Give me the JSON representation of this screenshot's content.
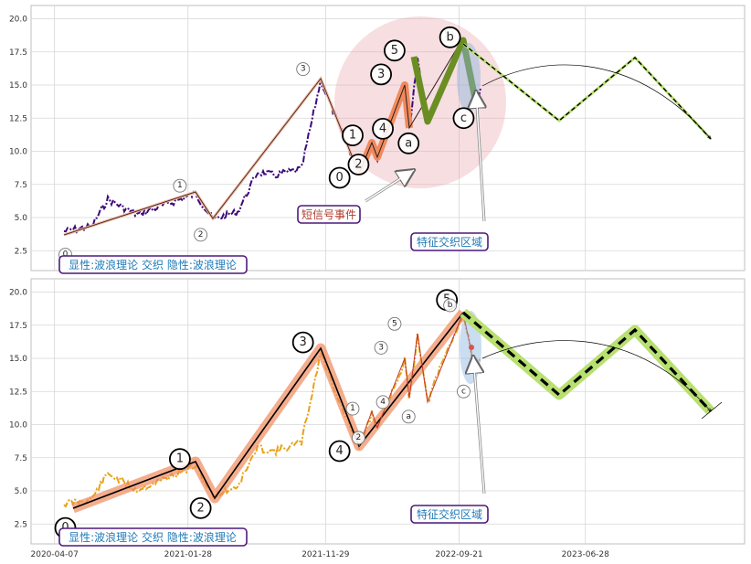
{
  "chart_data": [
    {
      "type": "line",
      "panel": "top",
      "xlabel": "",
      "ylabel": "",
      "ylim": [
        1,
        21
      ],
      "yticks": [
        "2.5",
        "5.0",
        "7.5",
        "10.0",
        "12.5",
        "15.0",
        "17.5",
        "20.0"
      ],
      "grid": true,
      "price_color": "#3d0a7a",
      "wave_labels": [
        {
          "label": "0",
          "x": "2020-05-01",
          "y": 2.2,
          "size": "small"
        },
        {
          "label": "1",
          "x": "2021-01-10",
          "y": 7.4,
          "size": "small"
        },
        {
          "label": "2",
          "x": "2021-02-25",
          "y": 3.7,
          "size": "small"
        },
        {
          "label": "3",
          "x": "2021-10-10",
          "y": 16.2,
          "size": "small"
        },
        {
          "label": "0",
          "x": "2021-12-30",
          "y": 8.0,
          "size": "large"
        },
        {
          "label": "1",
          "x": "2022-01-28",
          "y": 11.2,
          "size": "large"
        },
        {
          "label": "2",
          "x": "2022-02-10",
          "y": 9.0,
          "size": "large"
        },
        {
          "label": "3",
          "x": "2022-04-01",
          "y": 15.8,
          "size": "large"
        },
        {
          "label": "4",
          "x": "2022-04-05",
          "y": 11.7,
          "size": "large"
        },
        {
          "label": "5",
          "x": "2022-05-01",
          "y": 17.6,
          "size": "large"
        },
        {
          "label": "a",
          "x": "2022-06-01",
          "y": 10.6,
          "size": "large"
        },
        {
          "label": "5",
          "x": "2022-08-25",
          "y": 18.8,
          "size": "small"
        },
        {
          "label": "b",
          "x": "2022-09-01",
          "y": 18.6,
          "size": "large"
        },
        {
          "label": "c",
          "x": "2022-10-01",
          "y": 12.5,
          "size": "large"
        }
      ],
      "annotations": [
        "短信号事件",
        "特征交织区域",
        "显性:波浪理论 交织 隐性:波浪理论"
      ]
    },
    {
      "type": "line",
      "panel": "bottom",
      "xlabel": "",
      "ylabel": "",
      "ylim": [
        1,
        21
      ],
      "yticks": [
        "2.5",
        "5.0",
        "7.5",
        "10.0",
        "12.5",
        "15.0",
        "17.5",
        "20.0"
      ],
      "xticks": [
        "2020-04-07",
        "2021-01-28",
        "2021-11-29",
        "2022-09-21",
        "2023-06-28"
      ],
      "grid": true,
      "price_color": "#e8a317",
      "wave_labels": [
        {
          "label": "0",
          "x": "2020-05-01",
          "y": 2.2,
          "size": "large"
        },
        {
          "label": "1",
          "x": "2021-01-10",
          "y": 7.4,
          "size": "large"
        },
        {
          "label": "2",
          "x": "2021-02-25",
          "y": 3.7,
          "size": "large"
        },
        {
          "label": "3",
          "x": "2021-10-10",
          "y": 16.2,
          "size": "large"
        },
        {
          "label": "4",
          "x": "2021-12-30",
          "y": 8.0,
          "size": "large"
        },
        {
          "label": "1",
          "x": "2022-01-28",
          "y": 11.2,
          "size": "small"
        },
        {
          "label": "2",
          "x": "2022-02-10",
          "y": 9.0,
          "size": "small"
        },
        {
          "label": "3",
          "x": "2022-04-01",
          "y": 15.8,
          "size": "small"
        },
        {
          "label": "4",
          "x": "2022-04-05",
          "y": 11.7,
          "size": "small"
        },
        {
          "label": "5",
          "x": "2022-05-01",
          "y": 17.6,
          "size": "small"
        },
        {
          "label": "a",
          "x": "2022-06-01",
          "y": 10.6,
          "size": "small"
        },
        {
          "label": "5",
          "x": "2022-08-25",
          "y": 19.4,
          "size": "large"
        },
        {
          "label": "b",
          "x": "2022-09-01",
          "y": 19.0,
          "size": "small"
        },
        {
          "label": "c",
          "x": "2022-10-01",
          "y": 12.5,
          "size": "small"
        }
      ],
      "annotations": [
        "特征交织区域",
        "显性:波浪理论 交织 隐性:波浪理论"
      ]
    }
  ]
}
